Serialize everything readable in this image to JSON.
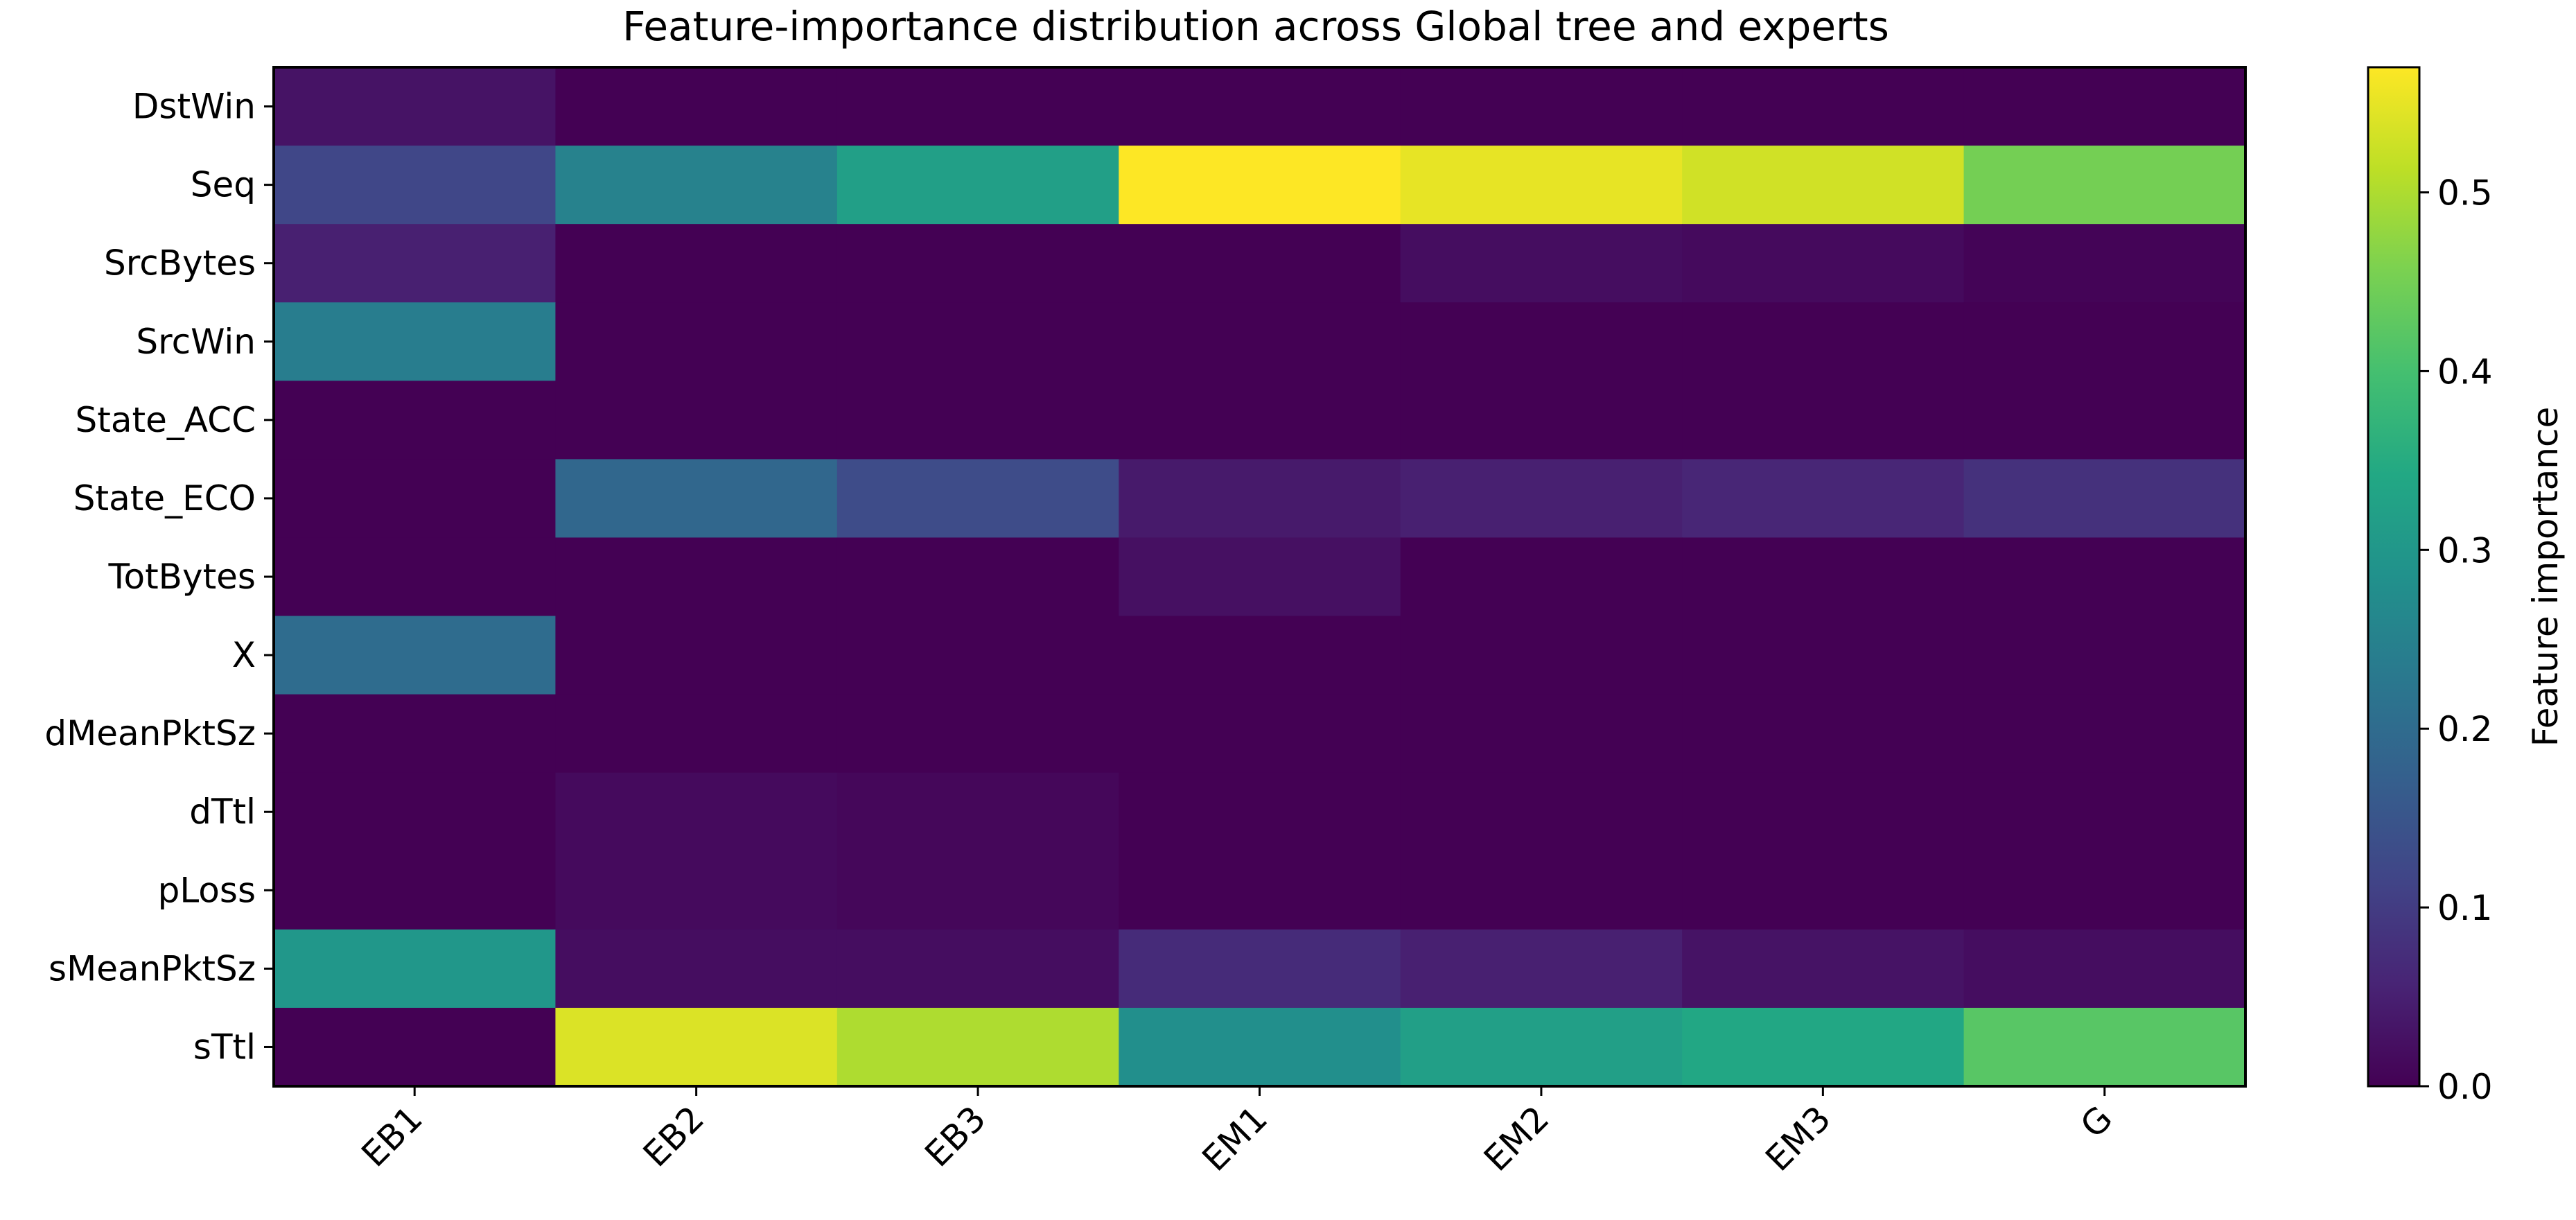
{
  "chart_data": {
    "type": "heatmap",
    "title": "Feature-importance distribution across Global tree and experts",
    "xlabel": "",
    "ylabel": "",
    "x_categories": [
      "EB1",
      "EB2",
      "EB3",
      "EM1",
      "EM2",
      "EM3",
      "G"
    ],
    "y_categories": [
      "DstWin",
      "Seq",
      "SrcBytes",
      "SrcWin",
      "State_ACC",
      "State_ECO",
      "TotBytes",
      "X",
      "dMeanPktSz",
      "dTtl",
      "pLoss",
      "sMeanPktSz",
      "sTtl"
    ],
    "values": [
      [
        0.03,
        0.0,
        0.0,
        0.0,
        0.0,
        0.0,
        0.0
      ],
      [
        0.12,
        0.25,
        0.32,
        0.57,
        0.55,
        0.53,
        0.45
      ],
      [
        0.05,
        0.0,
        0.0,
        0.0,
        0.02,
        0.015,
        0.005
      ],
      [
        0.24,
        0.0,
        0.0,
        0.0,
        0.0,
        0.0,
        0.0
      ],
      [
        0.0,
        0.0,
        0.0,
        0.0,
        0.0,
        0.0,
        0.0
      ],
      [
        0.0,
        0.19,
        0.13,
        0.04,
        0.05,
        0.06,
        0.08
      ],
      [
        0.0,
        0.0,
        0.0,
        0.025,
        0.0,
        0.0,
        0.0
      ],
      [
        0.2,
        0.0,
        0.0,
        0.0,
        0.0,
        0.0,
        0.0
      ],
      [
        0.0,
        0.0,
        0.0,
        0.0,
        0.0,
        0.0,
        0.0
      ],
      [
        0.0,
        0.015,
        0.01,
        0.0,
        0.0,
        0.0,
        0.0
      ],
      [
        0.0,
        0.015,
        0.01,
        0.0,
        0.0,
        0.0,
        0.0
      ],
      [
        0.3,
        0.02,
        0.02,
        0.07,
        0.05,
        0.03,
        0.02
      ],
      [
        0.0,
        0.54,
        0.5,
        0.28,
        0.32,
        0.34,
        0.42
      ]
    ],
    "colormap": "viridis",
    "vmin": 0.0,
    "vmax": 0.57,
    "colorbar": {
      "label": "Feature importance",
      "ticks": [
        0.0,
        0.1,
        0.2,
        0.3,
        0.4,
        0.5
      ],
      "tick_labels": [
        "0.0",
        "0.1",
        "0.2",
        "0.3",
        "0.4",
        "0.5"
      ]
    },
    "xtick_rotation": 45,
    "grid": false
  }
}
